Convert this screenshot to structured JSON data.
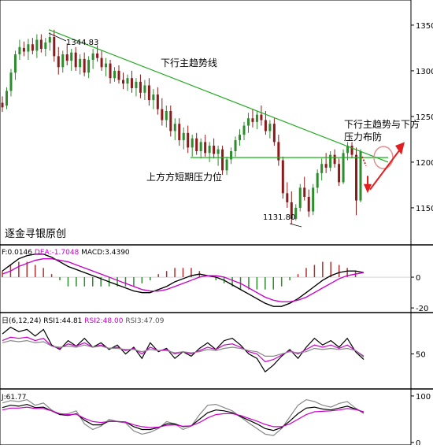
{
  "chart_data": [
    {
      "panel": "price",
      "type": "candlestick",
      "y_ticks": [
        1150,
        1200,
        1250,
        1300,
        1350
      ],
      "ylim": [
        1112,
        1362
      ],
      "candles": [
        [
          1265,
          1272,
          1255,
          1260
        ],
        [
          1262,
          1282,
          1258,
          1278
        ],
        [
          1278,
          1302,
          1272,
          1298
        ],
        [
          1298,
          1322,
          1290,
          1318
        ],
        [
          1318,
          1334,
          1312,
          1326
        ],
        [
          1325,
          1332,
          1316,
          1321
        ],
        [
          1321,
          1335,
          1312,
          1329
        ],
        [
          1329,
          1336,
          1318,
          1322
        ],
        [
          1322,
          1340,
          1314,
          1334
        ],
        [
          1334,
          1340,
          1320,
          1324
        ],
        [
          1324,
          1336,
          1316,
          1331
        ],
        [
          1331,
          1342,
          1322,
          1337
        ],
        [
          1337,
          1345,
          1310,
          1316
        ],
        [
          1316,
          1326,
          1296,
          1304
        ],
        [
          1304,
          1322,
          1298,
          1318
        ],
        [
          1318,
          1330,
          1306,
          1311
        ],
        [
          1311,
          1324,
          1300,
          1320
        ],
        [
          1320,
          1326,
          1300,
          1304
        ],
        [
          1304,
          1318,
          1296,
          1313
        ],
        [
          1313,
          1320,
          1294,
          1298
        ],
        [
          1298,
          1316,
          1292,
          1312
        ],
        [
          1312,
          1324,
          1302,
          1319
        ],
        [
          1319,
          1328,
          1310,
          1314
        ],
        [
          1314,
          1322,
          1300,
          1304
        ],
        [
          1304,
          1314,
          1294,
          1308
        ],
        [
          1308,
          1312,
          1286,
          1292
        ],
        [
          1292,
          1304,
          1288,
          1300
        ],
        [
          1300,
          1306,
          1286,
          1290
        ],
        [
          1290,
          1298,
          1280,
          1286
        ],
        [
          1286,
          1296,
          1278,
          1292
        ],
        [
          1292,
          1300,
          1276,
          1281
        ],
        [
          1281,
          1292,
          1272,
          1288
        ],
        [
          1288,
          1296,
          1270,
          1276
        ],
        [
          1276,
          1290,
          1268,
          1284
        ],
        [
          1284,
          1292,
          1262,
          1268
        ],
        [
          1268,
          1280,
          1258,
          1274
        ],
        [
          1274,
          1282,
          1252,
          1258
        ],
        [
          1258,
          1270,
          1240,
          1246
        ],
        [
          1246,
          1262,
          1238,
          1256
        ],
        [
          1256,
          1262,
          1228,
          1234
        ],
        [
          1234,
          1248,
          1224,
          1242
        ],
        [
          1242,
          1248,
          1218,
          1224
        ],
        [
          1224,
          1238,
          1214,
          1232
        ],
        [
          1232,
          1240,
          1210,
          1216
        ],
        [
          1216,
          1230,
          1206,
          1226
        ],
        [
          1226,
          1232,
          1208,
          1212
        ],
        [
          1212,
          1226,
          1204,
          1222
        ],
        [
          1222,
          1230,
          1206,
          1210
        ],
        [
          1210,
          1222,
          1200,
          1218
        ],
        [
          1218,
          1226,
          1204,
          1209
        ],
        [
          1209,
          1218,
          1196,
          1214
        ],
        [
          1214,
          1218,
          1186,
          1191
        ],
        [
          1191,
          1206,
          1186,
          1203
        ],
        [
          1203,
          1216,
          1198,
          1212
        ],
        [
          1212,
          1228,
          1206,
          1224
        ],
        [
          1224,
          1236,
          1218,
          1230
        ],
        [
          1230,
          1244,
          1224,
          1240
        ],
        [
          1240,
          1254,
          1232,
          1248
        ],
        [
          1248,
          1258,
          1238,
          1244
        ],
        [
          1244,
          1256,
          1236,
          1252
        ],
        [
          1252,
          1262,
          1240,
          1246
        ],
        [
          1246,
          1256,
          1230,
          1234
        ],
        [
          1234,
          1246,
          1226,
          1242
        ],
        [
          1242,
          1248,
          1218,
          1222
        ],
        [
          1222,
          1230,
          1196,
          1202
        ],
        [
          1202,
          1206,
          1160,
          1166
        ],
        [
          1166,
          1178,
          1150,
          1156
        ],
        [
          1156,
          1168,
          1132,
          1138
        ],
        [
          1138,
          1154,
          1136,
          1150
        ],
        [
          1150,
          1176,
          1146,
          1172
        ],
        [
          1172,
          1184,
          1158,
          1162
        ],
        [
          1162,
          1170,
          1140,
          1146
        ],
        [
          1146,
          1176,
          1142,
          1172
        ],
        [
          1172,
          1192,
          1166,
          1188
        ],
        [
          1188,
          1204,
          1180,
          1198
        ],
        [
          1198,
          1210,
          1188,
          1194
        ],
        [
          1194,
          1212,
          1190,
          1208
        ],
        [
          1208,
          1214,
          1194,
          1198
        ],
        [
          1198,
          1204,
          1174,
          1178
        ],
        [
          1178,
          1214,
          1176,
          1210
        ],
        [
          1210,
          1222,
          1202,
          1218
        ],
        [
          1218,
          1222,
          1204,
          1208
        ],
        [
          1208,
          1216,
          1142,
          1158
        ],
        [
          1158,
          1214,
          1156,
          1212
        ]
      ],
      "annotations": [
        {
          "text": "1344.83"
        },
        {
          "text": "1131.80"
        },
        {
          "text": "下行主趋势线"
        },
        {
          "text": "上方方短期压力位"
        },
        {
          "text": "下行主趋势与下方"
        },
        {
          "text": "压力布防"
        },
        {
          "text": "逐金寻银原创"
        }
      ],
      "trendline_down": [
        1345,
        1200
      ],
      "resistance": 1205,
      "colors": {
        "up": "#2e8b2e",
        "down": "#8b1a1a",
        "trend": "#22aa22",
        "arrow": "#e02020",
        "circle": "#e09090"
      }
    },
    {
      "panel": "macd",
      "type": "line",
      "label": "F:0.0146 DEA:-1.7048 MACD:3.4390",
      "label_parts": [
        "F:0.0146",
        "DEA:-1.7048",
        "MACD:3.4390"
      ],
      "y_ticks": [
        0,
        -20
      ],
      "ylim": [
        -22,
        20
      ],
      "series": [
        {
          "values": [
            4,
            8,
            12,
            14,
            15,
            15,
            13,
            10,
            7,
            5,
            3,
            1,
            -1,
            -3,
            -5,
            -7,
            -9,
            -10,
            -10,
            -8,
            -6,
            -3,
            -1,
            1,
            2,
            1,
            0,
            -2,
            -5,
            -8,
            -11,
            -14,
            -17,
            -19,
            -19,
            -17,
            -14,
            -10,
            -6,
            -2,
            1,
            3,
            4,
            4,
            3
          ],
          "color": "#000000"
        },
        {
          "values": [
            2,
            4,
            7,
            9,
            11,
            12,
            12,
            11,
            10,
            8,
            6,
            4,
            2,
            0,
            -2,
            -4,
            -6,
            -8,
            -9,
            -9,
            -8,
            -6,
            -4,
            -2,
            0,
            1,
            1,
            0,
            -2,
            -4,
            -7,
            -10,
            -13,
            -15,
            -16,
            -16,
            -15,
            -13,
            -10,
            -7,
            -4,
            -1,
            1,
            2,
            3
          ],
          "color": "#cc00cc"
        }
      ]
    },
    {
      "panel": "rsi",
      "type": "line",
      "label": "日(6,12,24) RSI1:44.81 RSI2:48.00 RSI3:47.09",
      "label_parts": [
        "日(6,12,24)",
        "RSI1:44.81",
        "RSI2:48.00",
        "RSI3:47.09"
      ],
      "y_ticks": [
        50
      ],
      "ylim": [
        20,
        85
      ],
      "series": [
        {
          "values": [
            68,
            74,
            70,
            72,
            66,
            72,
            58,
            54,
            62,
            57,
            64,
            56,
            60,
            54,
            58,
            50,
            56,
            46,
            60,
            52,
            55,
            46,
            52,
            48,
            55,
            60,
            54,
            62,
            64,
            58,
            50,
            46,
            34,
            40,
            48,
            54,
            46,
            56,
            64,
            58,
            62,
            56,
            64,
            52,
            45
          ],
          "color": "#000000"
        },
        {
          "values": [
            62,
            65,
            64,
            65,
            62,
            64,
            57,
            55,
            59,
            57,
            60,
            56,
            58,
            55,
            56,
            53,
            55,
            50,
            56,
            53,
            54,
            50,
            52,
            50,
            53,
            56,
            54,
            58,
            59,
            56,
            52,
            50,
            43,
            45,
            49,
            53,
            50,
            54,
            58,
            56,
            58,
            55,
            58,
            53,
            48
          ],
          "color": "#cc00cc"
        },
        {
          "values": [
            60,
            62,
            61,
            62,
            60,
            61,
            57,
            56,
            57,
            56,
            58,
            56,
            57,
            55,
            55,
            54,
            54,
            52,
            54,
            53,
            53,
            51,
            52,
            51,
            52,
            54,
            53,
            55,
            56,
            55,
            53,
            52,
            48,
            48,
            50,
            52,
            51,
            52,
            55,
            54,
            55,
            54,
            55,
            53,
            47
          ],
          "color": "#888888"
        }
      ]
    },
    {
      "panel": "kdj",
      "type": "line",
      "label": "J:61.77",
      "y_ticks": [
        100,
        0
      ],
      "ylim": [
        -5,
        110
      ],
      "series": [
        {
          "values": [
            85,
            90,
            88,
            92,
            80,
            85,
            70,
            60,
            62,
            68,
            40,
            28,
            35,
            50,
            45,
            42,
            25,
            18,
            22,
            30,
            45,
            40,
            28,
            35,
            60,
            80,
            82,
            75,
            68,
            55,
            42,
            30,
            18,
            15,
            30,
            55,
            80,
            92,
            88,
            80,
            76,
            84,
            88,
            74,
            62
          ],
          "color": "#888888"
        },
        {
          "values": [
            75,
            80,
            78,
            82,
            75,
            76,
            68,
            60,
            58,
            62,
            48,
            38,
            38,
            46,
            45,
            44,
            34,
            28,
            28,
            32,
            40,
            40,
            34,
            36,
            50,
            64,
            70,
            68,
            64,
            56,
            48,
            40,
            30,
            26,
            32,
            46,
            62,
            74,
            76,
            72,
            70,
            74,
            78,
            72,
            65
          ],
          "color": "#000000"
        },
        {
          "values": [
            70,
            74,
            74,
            76,
            73,
            73,
            68,
            62,
            60,
            61,
            52,
            45,
            43,
            45,
            45,
            44,
            38,
            34,
            32,
            33,
            37,
            38,
            35,
            36,
            43,
            53,
            60,
            62,
            62,
            58,
            52,
            46,
            39,
            34,
            34,
            40,
            50,
            60,
            66,
            67,
            68,
            70,
            73,
            71,
            66
          ],
          "color": "#cc00cc"
        }
      ]
    }
  ]
}
